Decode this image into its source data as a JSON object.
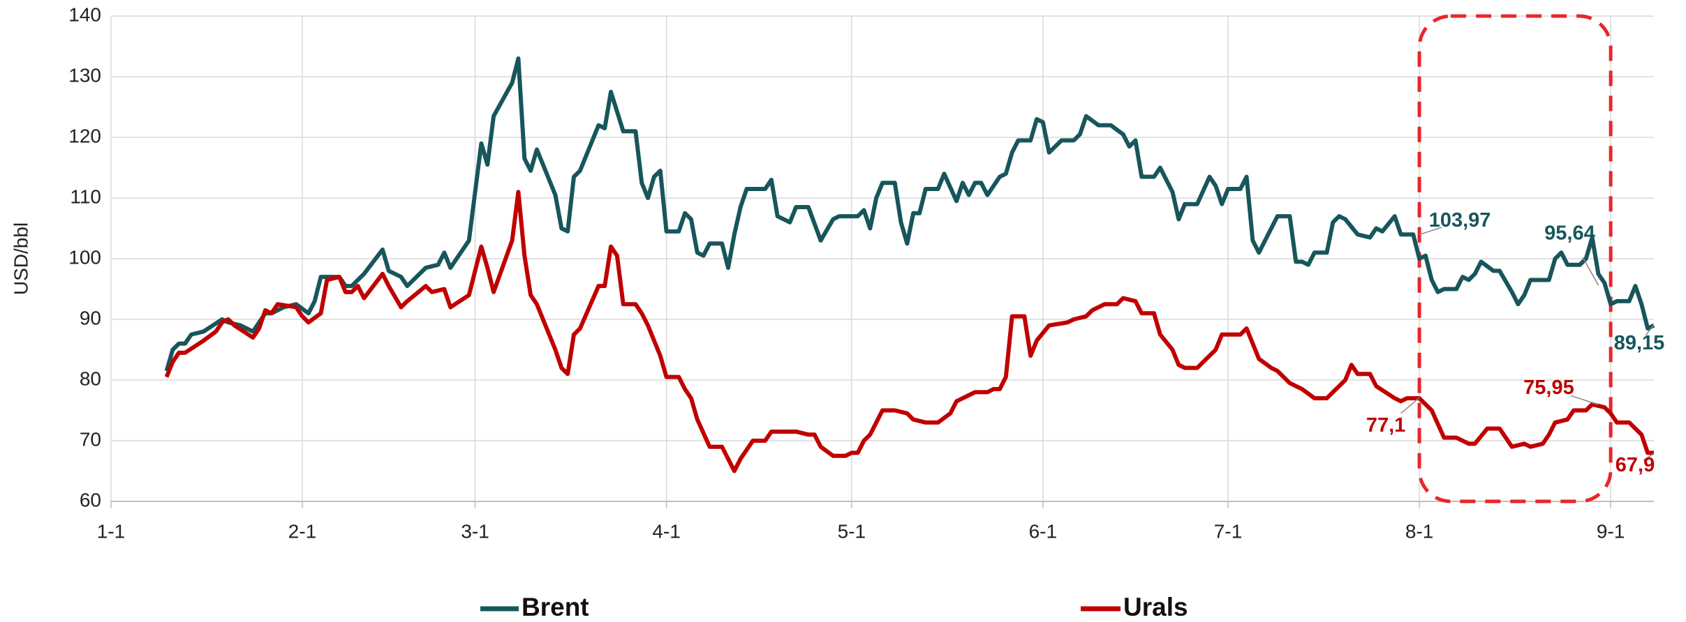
{
  "chart_data": {
    "type": "line",
    "y_label": "USD/bbl",
    "xlim": [
      0,
      250
    ],
    "ylim": [
      60,
      140
    ],
    "xticks": [
      {
        "value": 0,
        "label": "1-1"
      },
      {
        "value": 31,
        "label": "2-1"
      },
      {
        "value": 59,
        "label": "3-1"
      },
      {
        "value": 90,
        "label": "4-1"
      },
      {
        "value": 120,
        "label": "5-1"
      },
      {
        "value": 151,
        "label": "6-1"
      },
      {
        "value": 181,
        "label": "7-1"
      },
      {
        "value": 212,
        "label": "8-1"
      },
      {
        "value": 243,
        "label": "9-1"
      }
    ],
    "yticks": [
      60,
      70,
      80,
      90,
      100,
      110,
      120,
      130,
      140
    ],
    "grid": true,
    "highlight": {
      "x": [
        212,
        243
      ],
      "color": "#e8262a"
    },
    "series": [
      {
        "name": "Brent",
        "color": "#17565b",
        "x": [
          9,
          10,
          11,
          12,
          13,
          15,
          18,
          19,
          21,
          23,
          25,
          26,
          28,
          30,
          32,
          33,
          34,
          37,
          38,
          39,
          41,
          44,
          45,
          47,
          48,
          51,
          53,
          54,
          55,
          58,
          60,
          61,
          62,
          65,
          66,
          67,
          68,
          69,
          72,
          73,
          74,
          75,
          76,
          79,
          80,
          81,
          83,
          85,
          86,
          87,
          88,
          89,
          90,
          92,
          93,
          94,
          95,
          96,
          97,
          99,
          100,
          101,
          102,
          103,
          106,
          107,
          108,
          110,
          111,
          113,
          115,
          117,
          118,
          121,
          122,
          123,
          124,
          125,
          127,
          128,
          129,
          130,
          131,
          132,
          134,
          135,
          137,
          138,
          139,
          140,
          141,
          142,
          144,
          145,
          146,
          147,
          149,
          150,
          151,
          152,
          154,
          156,
          157,
          158,
          160,
          162,
          164,
          165,
          166,
          167,
          169,
          170,
          172,
          173,
          174,
          176,
          178,
          179,
          180,
          181,
          183,
          184,
          185,
          186,
          188,
          189,
          191,
          192,
          193,
          194,
          195,
          197,
          198,
          199,
          200,
          202,
          204,
          205,
          206,
          208,
          209,
          211,
          212,
          213,
          214,
          215,
          216,
          218,
          219,
          220,
          221,
          222,
          224,
          225,
          227,
          228,
          229,
          230,
          233,
          234,
          235,
          236,
          238,
          239,
          240,
          241,
          242,
          243,
          244,
          246,
          247,
          248,
          249,
          250
        ],
        "values": [
          81.5,
          85,
          86,
          86,
          87.5,
          88,
          90,
          89.5,
          89,
          88,
          91,
          91,
          92,
          92.5,
          91,
          93,
          97,
          97,
          95.5,
          95.5,
          97.5,
          101.5,
          98,
          97,
          95.5,
          98.5,
          99,
          101,
          98.5,
          103,
          119,
          115.5,
          123.5,
          129,
          133,
          116.5,
          114.5,
          118,
          110.5,
          105,
          104.5,
          113.5,
          114.5,
          122,
          121.5,
          127.5,
          121,
          121,
          112.5,
          110,
          113.5,
          114.5,
          104.5,
          104.5,
          107.5,
          106.5,
          101,
          100.5,
          102.5,
          102.5,
          98.5,
          104,
          108.5,
          111.5,
          111.5,
          113,
          107,
          106,
          108.5,
          108.5,
          103,
          106.5,
          107,
          107,
          108,
          105,
          110,
          112.5,
          112.5,
          106,
          102.5,
          107.5,
          107.5,
          111.5,
          111.5,
          114,
          109.5,
          112.5,
          110.5,
          112.5,
          112.5,
          110.5,
          113.5,
          114,
          117.5,
          119.5,
          119.5,
          123,
          122.5,
          117.5,
          119.5,
          119.5,
          120.5,
          123.5,
          122,
          122,
          120.5,
          118.5,
          119.5,
          113.5,
          113.5,
          115,
          111,
          106.5,
          109,
          109,
          113.5,
          112,
          109,
          111.5,
          111.5,
          113.5,
          103,
          101,
          105,
          107,
          107,
          99.5,
          99.5,
          99,
          101,
          101,
          106,
          107,
          106.5,
          104,
          103.5,
          105,
          104.5,
          107,
          104,
          104,
          100,
          100.5,
          96.5,
          94.5,
          95,
          95,
          97,
          96.5,
          97.5,
          99.5,
          98,
          98,
          94.5,
          92.5,
          94,
          96.5,
          96.5,
          100,
          101,
          99,
          99,
          100,
          103.5,
          97.5,
          96,
          92.5,
          93,
          93,
          95.5,
          92.5,
          88.5,
          89
        ],
        "annotations": [
          {
            "x": 212,
            "value": 103.97,
            "label": "103,97"
          },
          {
            "x": 241,
            "value": 95.64,
            "label": "95,64"
          },
          {
            "x": 250,
            "value": 89.15,
            "label": "89,15"
          }
        ]
      },
      {
        "name": "Urals",
        "color": "#c00000",
        "x": [
          9,
          10,
          11,
          12,
          15,
          17,
          18,
          19,
          20,
          23,
          24,
          25,
          26,
          27,
          30,
          31,
          32,
          34,
          35,
          37,
          38,
          39,
          40,
          41,
          44,
          45,
          47,
          48,
          51,
          52,
          54,
          55,
          58,
          60,
          61,
          62,
          65,
          66,
          67,
          68,
          69,
          72,
          73,
          74,
          75,
          76,
          79,
          80,
          81,
          82,
          83,
          85,
          86,
          87,
          89,
          90,
          92,
          93,
          94,
          95,
          97,
          99,
          100,
          101,
          102,
          104,
          106,
          107,
          108,
          111,
          113,
          114,
          115,
          117,
          119,
          120,
          121,
          122,
          123,
          125,
          127,
          129,
          130,
          132,
          134,
          136,
          137,
          139,
          140,
          142,
          143,
          144,
          145,
          146,
          148,
          149,
          150,
          152,
          155,
          156,
          158,
          159,
          161,
          163,
          164,
          166,
          167,
          169,
          170,
          172,
          173,
          174,
          176,
          177,
          179,
          180,
          183,
          184,
          185,
          186,
          188,
          189,
          191,
          193,
          195,
          197,
          198,
          200,
          201,
          202,
          204,
          205,
          208,
          209,
          210,
          212,
          214,
          216,
          218,
          220,
          221,
          223,
          225,
          227,
          229,
          230,
          232,
          233,
          234,
          236,
          237,
          239,
          240,
          242,
          243,
          244,
          246,
          248,
          249,
          250
        ],
        "values": [
          80.5,
          83,
          84.5,
          84.5,
          86.5,
          88,
          89.5,
          90,
          89,
          87,
          88.5,
          91.5,
          91,
          92.5,
          92,
          90.5,
          89.5,
          91,
          96.5,
          97,
          94.5,
          94.5,
          95.5,
          93.5,
          97.5,
          95.5,
          92,
          93,
          95.5,
          94.5,
          95,
          92,
          94,
          102,
          98.5,
          94.5,
          103,
          111,
          100.5,
          94,
          92.5,
          85,
          82,
          81,
          87.5,
          88.5,
          95.5,
          95.5,
          102,
          100.5,
          92.5,
          92.5,
          91,
          89,
          84,
          80.5,
          80.5,
          78.5,
          77,
          73.5,
          69,
          69,
          67,
          65,
          67,
          70,
          70,
          71.5,
          71.5,
          71.5,
          71,
          71,
          69,
          67.5,
          67.5,
          68,
          68,
          70,
          71,
          75,
          75,
          74.5,
          73.5,
          73,
          73,
          74.5,
          76.5,
          77.5,
          78,
          78,
          78.5,
          78.5,
          80.5,
          90.5,
          90.5,
          84,
          86.5,
          89,
          89.5,
          90,
          90.5,
          91.5,
          92.5,
          92.5,
          93.5,
          93,
          91,
          91,
          87.5,
          85,
          82.5,
          82,
          82,
          83,
          85,
          87.5,
          87.5,
          88.5,
          86,
          83.5,
          82,
          81.5,
          79.5,
          78.5,
          77,
          77,
          78,
          80,
          82.5,
          81,
          81,
          79,
          77,
          76.5,
          77,
          77,
          75,
          70.5,
          70.5,
          69.5,
          69.5,
          72,
          72,
          69,
          69.5,
          69,
          69.5,
          71,
          73,
          73.5,
          75,
          75,
          76,
          75.5,
          74.5,
          73,
          73,
          71,
          68,
          68
        ],
        "annotations": [
          {
            "x": 212,
            "value": 77.1,
            "label": "77,1"
          },
          {
            "x": 241,
            "value": 75.95,
            "label": "75,95"
          },
          {
            "x": 250,
            "value": 67.9,
            "label": "67,9"
          }
        ]
      }
    ]
  }
}
